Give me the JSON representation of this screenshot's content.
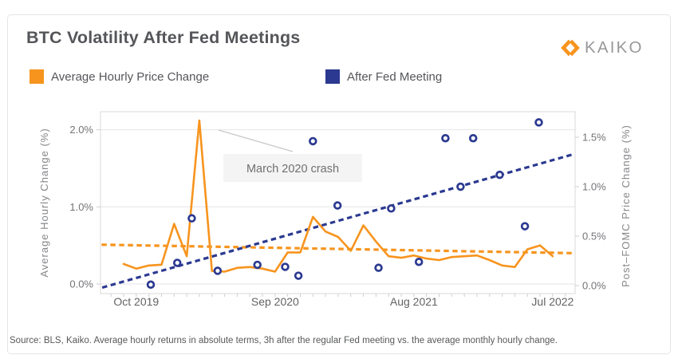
{
  "card": {
    "title": "BTC Volatility After Fed Meetings",
    "brand": "KAIKO",
    "source_note": "Source: BLS, Kaiko. Average hourly returns in absolute terms, 3h after the regular Fed meeting vs. the average monthly hourly change."
  },
  "legend": [
    {
      "label": "Average Hourly Price Change",
      "color": "#F7941E"
    },
    {
      "label": "After Fed Meeting",
      "color": "#2B3990"
    }
  ],
  "annotation": {
    "text": "March 2020 crash"
  },
  "colors": {
    "accent_orange": "#F7941E",
    "accent_blue": "#2B3990",
    "grid": "#e6e6e8"
  },
  "chart_data": {
    "type": "line+scatter",
    "title": "BTC Volatility After Fed Meetings",
    "x_axis": {
      "range_months": [
        "Sep 2019",
        "Jul 2022"
      ],
      "tick_labels": [
        {
          "m": 1,
          "label": "Oct 2019"
        },
        {
          "m": 12,
          "label": "Sep 2020"
        },
        {
          "m": 23,
          "label": "Aug 2021"
        },
        {
          "m": 34,
          "label": "Jul 2022"
        }
      ]
    },
    "left_axis": {
      "title": "Average Hourly Change (%)",
      "unit": "%",
      "range": [
        0,
        2.2
      ],
      "grid": true,
      "ticks": [
        {
          "v": 0,
          "label": "0.0%"
        },
        {
          "v": 1,
          "label": "1.0%"
        },
        {
          "v": 2,
          "label": "2.0%"
        }
      ]
    },
    "right_axis": {
      "title": "Post–FOMC Price Change (%)",
      "unit": "%",
      "range": [
        0,
        1.7
      ],
      "ticks": [
        {
          "v": 0,
          "label": "0.0%"
        },
        {
          "v": 0.5,
          "label": "0.5%"
        },
        {
          "v": 1.0,
          "label": "1.0%"
        },
        {
          "v": 1.5,
          "label": "1.5%"
        }
      ]
    },
    "series": [
      {
        "name": "Average Hourly Price Change",
        "type": "line",
        "axis": "left",
        "color": "#F7941E",
        "months": [
          "Sep 2019",
          "Oct 2019",
          "Nov 2019",
          "Dec 2019",
          "Jan 2020",
          "Feb 2020",
          "Mar 2020",
          "Apr 2020",
          "May 2020",
          "Jun 2020",
          "Jul 2020",
          "Aug 2020",
          "Sep 2020",
          "Oct 2020",
          "Nov 2020",
          "Dec 2020",
          "Jan 2021",
          "Feb 2021",
          "Mar 2021",
          "Apr 2021",
          "May 2021",
          "Jun 2021",
          "Jul 2021",
          "Aug 2021",
          "Sep 2021",
          "Oct 2021",
          "Nov 2021",
          "Dec 2021",
          "Jan 2022",
          "Feb 2022",
          "Mar 2022",
          "Apr 2022",
          "May 2022",
          "Jun 2022",
          "Jul 2022"
        ],
        "values": [
          0.26,
          0.2,
          0.24,
          0.25,
          0.78,
          0.36,
          2.12,
          0.17,
          0.16,
          0.21,
          0.22,
          0.2,
          0.16,
          0.41,
          0.41,
          0.87,
          0.68,
          0.61,
          0.43,
          0.76,
          0.55,
          0.36,
          0.34,
          0.37,
          0.33,
          0.31,
          0.35,
          0.36,
          0.37,
          0.31,
          0.24,
          0.22,
          0.45,
          0.5,
          0.36
        ]
      },
      {
        "name": "After Fed Meeting",
        "type": "scatter",
        "axis": "right",
        "color": "#2B3990",
        "points": [
          {
            "meeting": "Oct 2019",
            "m": 2.15,
            "v": 0.01
          },
          {
            "meeting": "Jan 2020",
            "m": 4.25,
            "v": 0.23
          },
          {
            "meeting": "Mar 2020",
            "m": 5.4,
            "v": 0.68
          },
          {
            "meeting": "Apr 2020",
            "m": 7.45,
            "v": 0.15
          },
          {
            "meeting": "Jul 2020",
            "m": 10.6,
            "v": 0.21
          },
          {
            "meeting": "Sep 2020",
            "m": 12.8,
            "v": 0.19
          },
          {
            "meeting": "Nov 2020",
            "m": 13.85,
            "v": 0.1
          },
          {
            "meeting": "Dec 2020",
            "m": 15.0,
            "v": 1.46
          },
          {
            "meeting": "Jan 2021",
            "m": 16.95,
            "v": 0.81
          },
          {
            "meeting": "Apr 2021",
            "m": 20.2,
            "v": 0.18
          },
          {
            "meeting": "Jun 2021",
            "m": 21.2,
            "v": 0.78
          },
          {
            "meeting": "Jul 2021",
            "m": 23.4,
            "v": 0.24
          },
          {
            "meeting": "Sep 2021",
            "m": 25.5,
            "v": 1.49
          },
          {
            "meeting": "Nov 2021",
            "m": 26.7,
            "v": 1.0
          },
          {
            "meeting": "Dec 2021",
            "m": 27.7,
            "v": 1.49
          },
          {
            "meeting": "Mar 2022",
            "m": 29.8,
            "v": 1.12
          },
          {
            "meeting": "May 2022",
            "m": 31.8,
            "v": 0.6
          },
          {
            "meeting": "Jun 2022",
            "m": 32.9,
            "v": 1.65
          }
        ]
      }
    ],
    "trendlines": [
      {
        "name": "avg-hourly-trend",
        "axis": "left",
        "color": "#F7941E",
        "m1": -1.75,
        "v1": 0.51,
        "m2": 35.6,
        "v2": 0.4
      },
      {
        "name": "post-fomc-trend",
        "axis": "right",
        "color": "#2B3990",
        "m1": -1.7,
        "v1": -0.02,
        "m2": 35.7,
        "v2": 1.33
      }
    ],
    "legend_position": "top"
  }
}
